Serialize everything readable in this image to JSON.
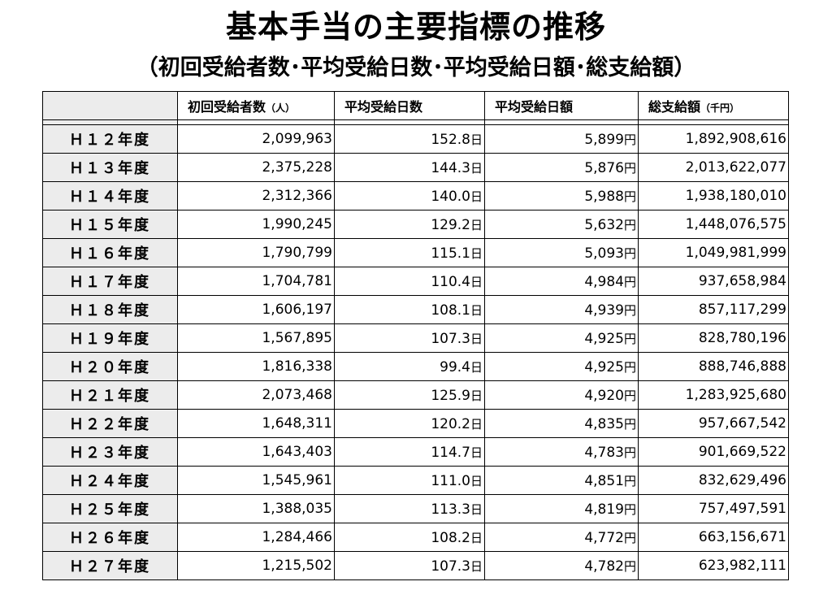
{
  "title": "基本手当の主要指標の推移",
  "subtitle": "（初回受給者数･平均受給日数･平均受給日額･総支給額）",
  "table": {
    "headers": [
      {
        "label": "初回受給者数",
        "unit": "（人）"
      },
      {
        "label": "平均受給日数",
        "unit": ""
      },
      {
        "label": "平均受給日額",
        "unit": ""
      },
      {
        "label": "総支給額",
        "unit": "（千円）"
      }
    ],
    "day_suffix": "日",
    "yen_suffix": "円",
    "rows": [
      {
        "year": "Ｈ１２年度",
        "recipients": "2,099,963",
        "days": "152.8",
        "daily": "5,899",
        "total": "1,892,908,616"
      },
      {
        "year": "Ｈ１３年度",
        "recipients": "2,375,228",
        "days": "144.3",
        "daily": "5,876",
        "total": "2,013,622,077"
      },
      {
        "year": "Ｈ１４年度",
        "recipients": "2,312,366",
        "days": "140.0",
        "daily": "5,988",
        "total": "1,938,180,010"
      },
      {
        "year": "Ｈ１５年度",
        "recipients": "1,990,245",
        "days": "129.2",
        "daily": "5,632",
        "total": "1,448,076,575"
      },
      {
        "year": "Ｈ１６年度",
        "recipients": "1,790,799",
        "days": "115.1",
        "daily": "5,093",
        "total": "1,049,981,999"
      },
      {
        "year": "Ｈ１７年度",
        "recipients": "1,704,781",
        "days": "110.4",
        "daily": "4,984",
        "total": "937,658,984"
      },
      {
        "year": "Ｈ１８年度",
        "recipients": "1,606,197",
        "days": "108.1",
        "daily": "4,939",
        "total": "857,117,299"
      },
      {
        "year": "Ｈ１９年度",
        "recipients": "1,567,895",
        "days": "107.3",
        "daily": "4,925",
        "total": "828,780,196"
      },
      {
        "year": "Ｈ２０年度",
        "recipients": "1,816,338",
        "days": "99.4",
        "daily": "4,925",
        "total": "888,746,888"
      },
      {
        "year": "Ｈ２１年度",
        "recipients": "2,073,468",
        "days": "125.9",
        "daily": "4,920",
        "total": "1,283,925,680"
      },
      {
        "year": "Ｈ２２年度",
        "recipients": "1,648,311",
        "days": "120.2",
        "daily": "4,835",
        "total": "957,667,542"
      },
      {
        "year": "Ｈ２３年度",
        "recipients": "1,643,403",
        "days": "114.7",
        "daily": "4,783",
        "total": "901,669,522"
      },
      {
        "year": "Ｈ２４年度",
        "recipients": "1,545,961",
        "days": "111.0",
        "daily": "4,851",
        "total": "832,629,496"
      },
      {
        "year": "Ｈ２５年度",
        "recipients": "1,388,035",
        "days": "113.3",
        "daily": "4,819",
        "total": "757,497,591"
      },
      {
        "year": "Ｈ２６年度",
        "recipients": "1,284,466",
        "days": "108.2",
        "daily": "4,772",
        "total": "663,156,671"
      },
      {
        "year": "Ｈ２７年度",
        "recipients": "1,215,502",
        "days": "107.3",
        "daily": "4,782",
        "total": "623,982,111"
      }
    ]
  }
}
